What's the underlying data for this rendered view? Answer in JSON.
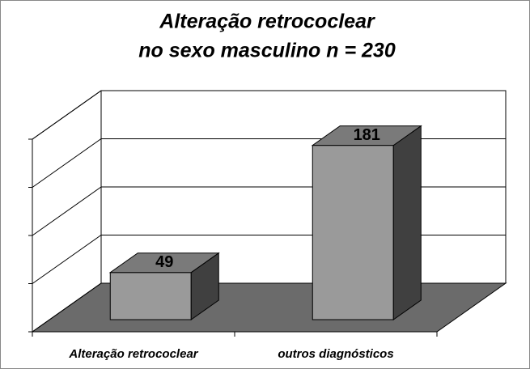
{
  "chart_data": {
    "type": "bar3d",
    "title": [
      "Alteração retrococlear",
      "no sexo masculino n = 230"
    ],
    "categories": [
      "Alteração retrococlear",
      "outros diagnósticos"
    ],
    "values": [
      49,
      181
    ],
    "ylim": [
      0,
      200
    ],
    "yticks": [
      0,
      50,
      100,
      150,
      200
    ],
    "grid": true,
    "colors": {
      "front": "#9a9a9a",
      "top": "#7a7a7a",
      "side": "#404040",
      "floor": "#6b6b6b"
    }
  }
}
